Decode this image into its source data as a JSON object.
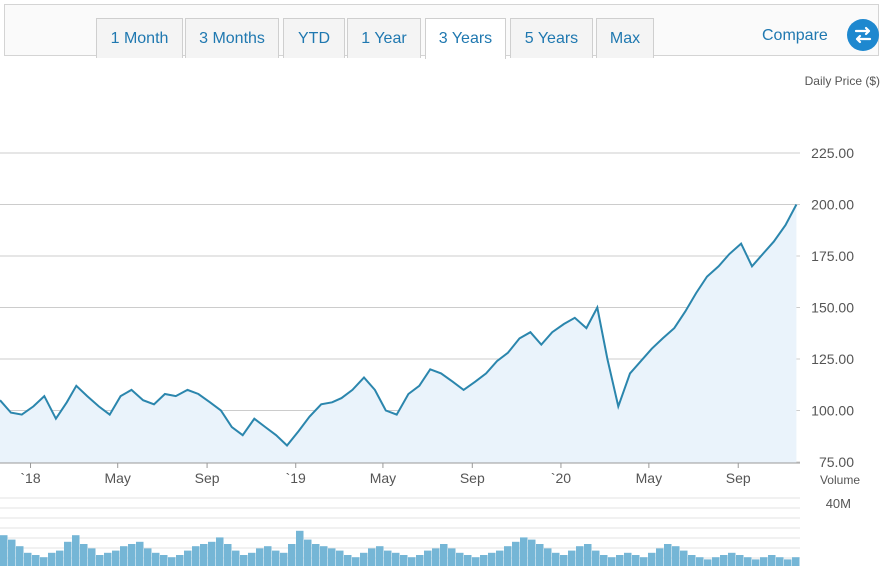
{
  "tabs": [
    "1 Month",
    "3 Months",
    "YTD",
    "1 Year",
    "3 Years",
    "5 Years",
    "Max"
  ],
  "active_tab": "3 Years",
  "compare_label": "Compare",
  "compare_icon": "swap-arrows-icon",
  "colors": {
    "accent": "#1f78b0",
    "line": "#2b86ad",
    "area": "#eaf3fb",
    "volume": "#75b6d6",
    "grid": "#cccccc"
  },
  "chart_data": {
    "type": "line",
    "ylabel": "Daily Price ($)",
    "yticks": [
      "225.00",
      "200.00",
      "175.00",
      "150.00",
      "125.00",
      "100.00",
      "75.00"
    ],
    "ylim": [
      50,
      230
    ],
    "xticks": [
      "`18",
      "May",
      "Sep",
      "`19",
      "May",
      "Sep",
      "`20",
      "May",
      "Sep"
    ],
    "xtick_positions": [
      "2018-01-01",
      "2018-05-01",
      "2018-09-01",
      "2019-01-01",
      "2019-05-01",
      "2019-09-01",
      "2020-01-01",
      "2020-05-01",
      "2020-09-01"
    ],
    "xlim": [
      "2017-11-20",
      "2020-11-25"
    ],
    "grid": true,
    "series": [
      {
        "x": [
          "2017-11-20",
          "2017-12-05",
          "2017-12-20",
          "2018-01-05",
          "2018-01-20",
          "2018-02-05",
          "2018-02-20",
          "2018-03-05",
          "2018-03-20",
          "2018-04-05",
          "2018-04-20",
          "2018-05-05",
          "2018-05-20",
          "2018-06-05",
          "2018-06-20",
          "2018-07-05",
          "2018-07-20",
          "2018-08-05",
          "2018-08-20",
          "2018-09-05",
          "2018-09-20",
          "2018-10-05",
          "2018-10-20",
          "2018-11-05",
          "2018-11-20",
          "2018-12-05",
          "2018-12-20",
          "2019-01-05",
          "2019-01-20",
          "2019-02-05",
          "2019-02-20",
          "2019-03-05",
          "2019-03-20",
          "2019-04-05",
          "2019-04-20",
          "2019-05-05",
          "2019-05-20",
          "2019-06-05",
          "2019-06-20",
          "2019-07-05",
          "2019-07-20",
          "2019-08-05",
          "2019-08-20",
          "2019-09-05",
          "2019-09-20",
          "2019-10-05",
          "2019-10-20",
          "2019-11-05",
          "2019-11-20",
          "2019-12-05",
          "2019-12-20",
          "2020-01-05",
          "2020-01-20",
          "2020-02-05",
          "2020-02-20",
          "2020-03-05",
          "2020-03-20",
          "2020-04-05",
          "2020-04-20",
          "2020-05-05",
          "2020-05-20",
          "2020-06-05",
          "2020-06-20",
          "2020-07-05",
          "2020-07-20",
          "2020-08-05",
          "2020-08-20",
          "2020-09-05",
          "2020-09-20",
          "2020-10-05",
          "2020-10-20",
          "2020-11-05",
          "2020-11-20"
        ],
        "y": [
          105,
          99,
          98,
          102,
          107,
          96,
          104,
          112,
          107,
          102,
          98,
          107,
          110,
          105,
          103,
          108,
          107,
          110,
          108,
          104,
          100,
          92,
          88,
          96,
          92,
          88,
          83,
          90,
          97,
          103,
          104,
          106,
          110,
          116,
          110,
          100,
          98,
          108,
          112,
          120,
          118,
          114,
          110,
          114,
          118,
          124,
          128,
          135,
          138,
          132,
          138,
          142,
          145,
          140,
          150,
          125,
          102,
          118,
          124,
          130,
          135,
          140,
          148,
          157,
          165,
          170,
          176,
          181,
          170,
          176,
          182,
          190,
          200
        ]
      }
    ],
    "volume": {
      "ylabel": "Volume",
      "ytick": "40M",
      "values": [
        28,
        24,
        18,
        12,
        10,
        8,
        12,
        14,
        22,
        28,
        20,
        16,
        10,
        12,
        14,
        18,
        20,
        22,
        16,
        12,
        10,
        8,
        10,
        14,
        18,
        20,
        22,
        26,
        20,
        14,
        10,
        12,
        16,
        18,
        14,
        12,
        20,
        32,
        24,
        20,
        18,
        16,
        14,
        10,
        8,
        12,
        16,
        18,
        14,
        12,
        10,
        8,
        10,
        14,
        16,
        20,
        16,
        12,
        10,
        8,
        10,
        12,
        14,
        18,
        22,
        26,
        24,
        20,
        16,
        12,
        10,
        14,
        18,
        20,
        14,
        10,
        8,
        10,
        12,
        10,
        8,
        12,
        16,
        20,
        18,
        14,
        10,
        8,
        6,
        8,
        10,
        12,
        10,
        8,
        6,
        8,
        10,
        8,
        6,
        8
      ]
    }
  }
}
